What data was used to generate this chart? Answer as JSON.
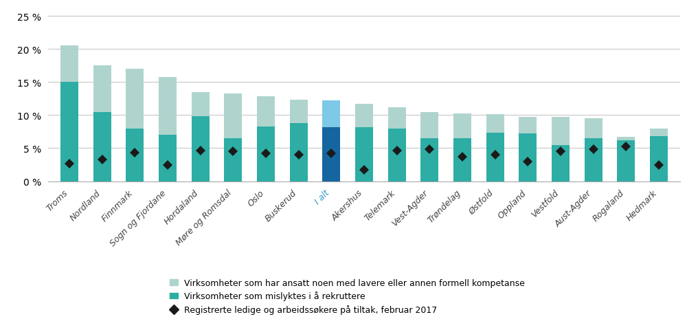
{
  "categories": [
    "Troms",
    "Nordland",
    "Finnmark",
    "Sogn og Fjordane",
    "Hordaland",
    "Møre og Romsdal",
    "Oslo",
    "Buskerud",
    "I alt",
    "Akershus",
    "Telemark",
    "Vest-Agder",
    "Trøndelag",
    "Østfold",
    "Oppland",
    "Vestfold",
    "Aust-Agder",
    "Rogaland",
    "Hedmark"
  ],
  "bar_bottom": [
    15.0,
    10.5,
    8.0,
    7.0,
    9.8,
    6.5,
    8.3,
    8.8,
    8.2,
    8.2,
    8.0,
    6.5,
    6.5,
    7.3,
    7.2,
    5.5,
    6.5,
    6.2,
    6.8
  ],
  "bar_top": [
    5.5,
    7.0,
    9.0,
    8.8,
    3.7,
    6.8,
    4.5,
    3.5,
    4.0,
    3.5,
    3.2,
    4.0,
    3.7,
    2.8,
    2.5,
    4.2,
    3.0,
    0.5,
    1.2
  ],
  "diamond_values": [
    2.7,
    3.3,
    4.3,
    2.4,
    4.6,
    4.5,
    4.2,
    4.0,
    4.2,
    1.7,
    4.6,
    4.8,
    3.7,
    4.0,
    3.0,
    4.5,
    4.8,
    5.3,
    2.4
  ],
  "bar_bottom_color": "#2dada4",
  "bar_top_color": "#afd4ce",
  "i_alt_bottom_color": "#1565a0",
  "i_alt_top_color": "#7ec8e8",
  "i_alt_index": 8,
  "i_alt_label_color": "#3399cc",
  "diamond_color": "#1a1a1a",
  "ylim": [
    0,
    26
  ],
  "yticks": [
    0,
    5,
    10,
    15,
    20,
    25
  ],
  "ytick_labels": [
    "0 %",
    "5 %",
    "10 %",
    "15 %",
    "20 %",
    "25 %"
  ],
  "legend1_label": "Virksomheter som har ansatt noen med lavere eller annen formell kompetanse",
  "legend2_label": "Virksomheter som mislyktes i å rekruttere",
  "legend3_label": "Registrerte ledige og arbeidssøkere på tiltak, februar 2017",
  "background_color": "#ffffff",
  "grid_color": "#c8c8c8",
  "bar_width": 0.55
}
